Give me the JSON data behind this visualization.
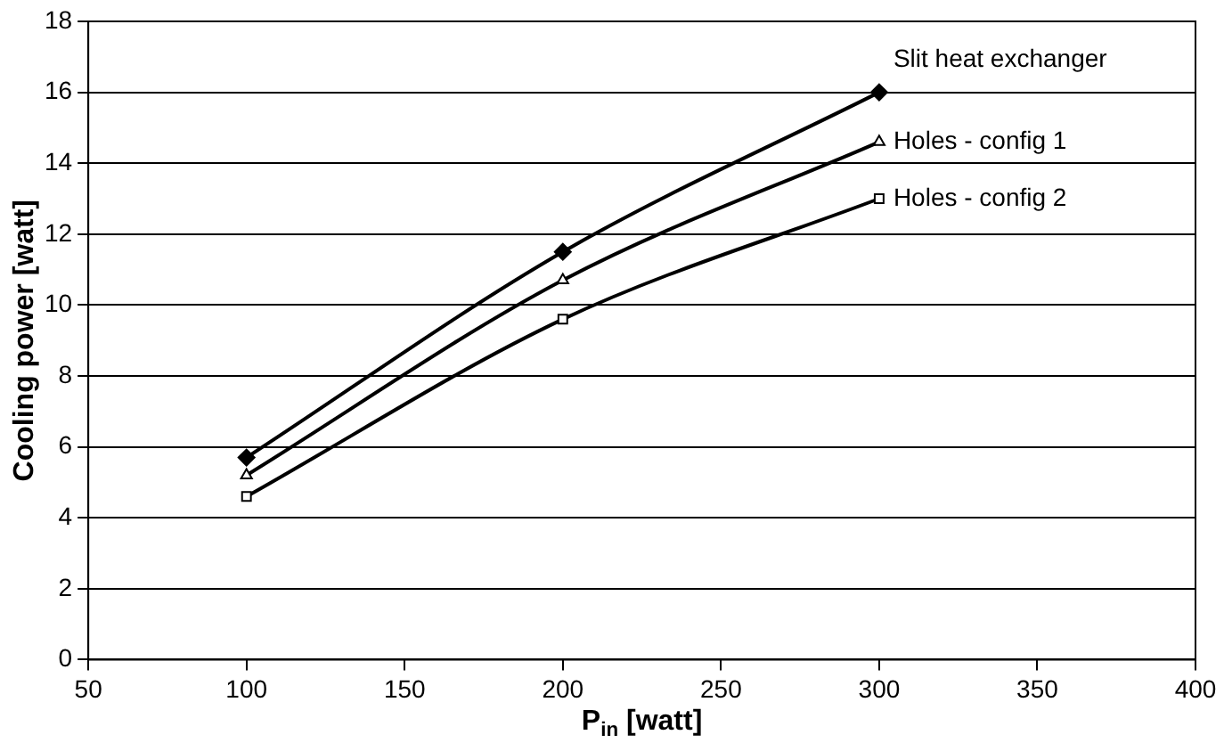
{
  "chart_data": {
    "type": "line",
    "xlabel": "P$_{in}$ [watt]",
    "ylabel": "Cooling power [watt]",
    "x": [
      100,
      200,
      300
    ],
    "series": [
      {
        "name": "Slit heat exchanger",
        "color": "#000000",
        "marker": "diamond",
        "values": [
          5.7,
          11.5,
          16
        ]
      },
      {
        "name": "Holes - config 1",
        "color": "#000000",
        "marker": "triangle",
        "values": [
          5.2,
          10.7,
          14.6
        ]
      },
      {
        "name": "Holes - config 2",
        "color": "#000000",
        "marker": "square",
        "values": [
          4.6,
          9.6,
          13
        ]
      }
    ],
    "xlim": [
      50,
      400
    ],
    "xticks": [
      50,
      100,
      150,
      200,
      250,
      300,
      350,
      400
    ],
    "ylim": [
      0,
      18
    ],
    "yticks": [
      0,
      2,
      4,
      6,
      8,
      10,
      12,
      14,
      16,
      18
    ],
    "grid": "y",
    "legend": false,
    "line_style": "solid"
  }
}
